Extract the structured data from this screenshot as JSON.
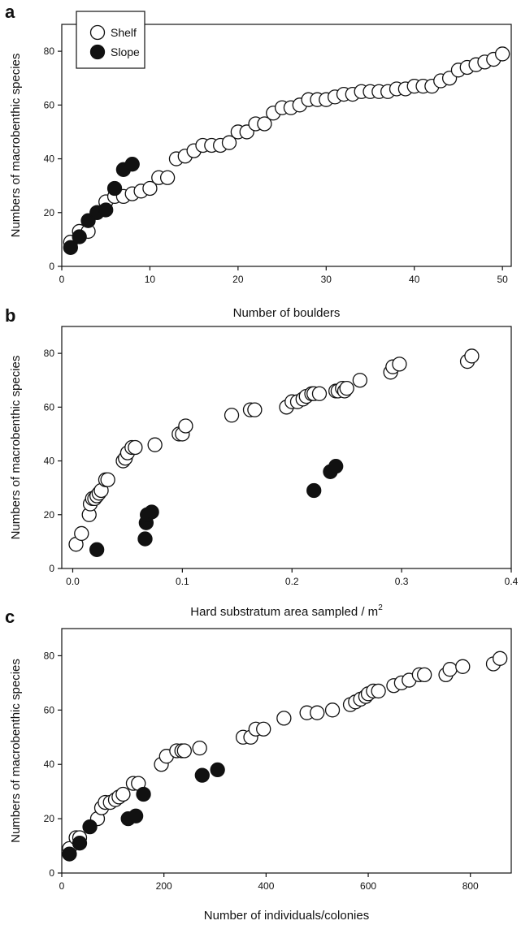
{
  "chart_data": [
    {
      "type": "scatter",
      "panel_letter": "a",
      "xlabel": "Number of boulders",
      "ylabel": "Numbers of macrobenthic species",
      "xlim": [
        0,
        51
      ],
      "ylim": [
        0,
        90
      ],
      "xticks": [
        0,
        10,
        20,
        30,
        40,
        50
      ],
      "xtick_labels": [
        "0",
        "10",
        "20",
        "30",
        "40",
        "50"
      ],
      "yticks": [
        0,
        20,
        40,
        60,
        80
      ],
      "ytick_labels": [
        "0",
        "20",
        "40",
        "60",
        "80"
      ],
      "grid": false,
      "legend": {
        "placement": "top-left",
        "entries": [
          {
            "name": "Shelf",
            "marker": "open-circle"
          },
          {
            "name": "Slope",
            "marker": "filled-circle"
          }
        ]
      },
      "series": [
        {
          "name": "Shelf",
          "marker": "open-circle",
          "points": [
            [
              1,
              9
            ],
            [
              2,
              13
            ],
            [
              3,
              13
            ],
            [
              4,
              20
            ],
            [
              5,
              24
            ],
            [
              6,
              26
            ],
            [
              7,
              26
            ],
            [
              8,
              27
            ],
            [
              9,
              28
            ],
            [
              10,
              29
            ],
            [
              11,
              33
            ],
            [
              12,
              33
            ],
            [
              13,
              40
            ],
            [
              14,
              41
            ],
            [
              15,
              43
            ],
            [
              16,
              45
            ],
            [
              17,
              45
            ],
            [
              18,
              45
            ],
            [
              19,
              46
            ],
            [
              20,
              50
            ],
            [
              21,
              50
            ],
            [
              22,
              53
            ],
            [
              23,
              53
            ],
            [
              24,
              57
            ],
            [
              25,
              59
            ],
            [
              26,
              59
            ],
            [
              27,
              60
            ],
            [
              28,
              62
            ],
            [
              29,
              62
            ],
            [
              30,
              62
            ],
            [
              31,
              63
            ],
            [
              32,
              64
            ],
            [
              33,
              64
            ],
            [
              34,
              65
            ],
            [
              35,
              65
            ],
            [
              36,
              65
            ],
            [
              37,
              65
            ],
            [
              38,
              66
            ],
            [
              39,
              66
            ],
            [
              40,
              67
            ],
            [
              41,
              67
            ],
            [
              42,
              67
            ],
            [
              43,
              69
            ],
            [
              44,
              70
            ],
            [
              45,
              73
            ],
            [
              46,
              74
            ],
            [
              47,
              75
            ],
            [
              48,
              76
            ],
            [
              49,
              77
            ],
            [
              50,
              79
            ]
          ]
        },
        {
          "name": "Slope",
          "marker": "filled-circle",
          "points": [
            [
              1,
              7
            ],
            [
              2,
              11
            ],
            [
              3,
              17
            ],
            [
              4,
              20
            ],
            [
              5,
              21
            ],
            [
              6,
              29
            ],
            [
              7,
              36
            ],
            [
              8,
              38
            ]
          ]
        }
      ]
    },
    {
      "type": "scatter",
      "panel_letter": "b",
      "xlabel": "Hard substratum area sampled / m",
      "xlabel_superscript": "2",
      "ylabel": "Numbers of macrobenthic species",
      "xlim": [
        -0.01,
        0.4
      ],
      "ylim": [
        0,
        90
      ],
      "xticks": [
        0,
        0.1,
        0.2,
        0.3,
        0.4
      ],
      "xtick_labels": [
        "0.0",
        "0.1",
        "0.2",
        "0.3",
        "0.4"
      ],
      "yticks": [
        0,
        20,
        40,
        60,
        80
      ],
      "ytick_labels": [
        "0",
        "20",
        "40",
        "60",
        "80"
      ],
      "grid": false,
      "series": [
        {
          "name": "Shelf",
          "marker": "open-circle",
          "points": [
            [
              0.003,
              9
            ],
            [
              0.008,
              13
            ],
            [
              0.015,
              20
            ],
            [
              0.016,
              24
            ],
            [
              0.018,
              26
            ],
            [
              0.02,
              26
            ],
            [
              0.022,
              27
            ],
            [
              0.024,
              28
            ],
            [
              0.026,
              29
            ],
            [
              0.03,
              33
            ],
            [
              0.032,
              33
            ],
            [
              0.046,
              40
            ],
            [
              0.048,
              41
            ],
            [
              0.05,
              43
            ],
            [
              0.054,
              45
            ],
            [
              0.057,
              45
            ],
            [
              0.075,
              46
            ],
            [
              0.097,
              50
            ],
            [
              0.1,
              50
            ],
            [
              0.103,
              53
            ],
            [
              0.145,
              57
            ],
            [
              0.162,
              59
            ],
            [
              0.166,
              59
            ],
            [
              0.195,
              60
            ],
            [
              0.2,
              62
            ],
            [
              0.205,
              62
            ],
            [
              0.21,
              63
            ],
            [
              0.213,
              64
            ],
            [
              0.218,
              65
            ],
            [
              0.22,
              65
            ],
            [
              0.225,
              65
            ],
            [
              0.24,
              66
            ],
            [
              0.242,
              66
            ],
            [
              0.246,
              67
            ],
            [
              0.248,
              66
            ],
            [
              0.25,
              67
            ],
            [
              0.262,
              70
            ],
            [
              0.29,
              73
            ],
            [
              0.292,
              75
            ],
            [
              0.298,
              76
            ],
            [
              0.36,
              77
            ],
            [
              0.364,
              79
            ]
          ]
        },
        {
          "name": "Slope",
          "marker": "filled-circle",
          "points": [
            [
              0.022,
              7
            ],
            [
              0.066,
              11
            ],
            [
              0.067,
              17
            ],
            [
              0.068,
              20
            ],
            [
              0.072,
              21
            ],
            [
              0.22,
              29
            ],
            [
              0.235,
              36
            ],
            [
              0.24,
              38
            ]
          ]
        }
      ]
    },
    {
      "type": "scatter",
      "panel_letter": "c",
      "xlabel": "Number of individuals/colonies",
      "ylabel": "Numbers of macrobenthic species",
      "xlim": [
        0,
        880
      ],
      "ylim": [
        0,
        90
      ],
      "xticks": [
        0,
        200,
        400,
        600,
        800
      ],
      "xtick_labels": [
        "0",
        "200",
        "400",
        "600",
        "800"
      ],
      "yticks": [
        0,
        20,
        40,
        60,
        80
      ],
      "ytick_labels": [
        "0",
        "20",
        "40",
        "60",
        "80"
      ],
      "grid": false,
      "series": [
        {
          "name": "Shelf",
          "marker": "open-circle",
          "points": [
            [
              15,
              9
            ],
            [
              28,
              13
            ],
            [
              35,
              13
            ],
            [
              70,
              20
            ],
            [
              78,
              24
            ],
            [
              85,
              26
            ],
            [
              95,
              26
            ],
            [
              105,
              27
            ],
            [
              112,
              28
            ],
            [
              120,
              29
            ],
            [
              140,
              33
            ],
            [
              150,
              33
            ],
            [
              195,
              40
            ],
            [
              205,
              43
            ],
            [
              225,
              45
            ],
            [
              235,
              45
            ],
            [
              240,
              45
            ],
            [
              270,
              46
            ],
            [
              355,
              50
            ],
            [
              370,
              50
            ],
            [
              380,
              53
            ],
            [
              395,
              53
            ],
            [
              435,
              57
            ],
            [
              480,
              59
            ],
            [
              500,
              59
            ],
            [
              530,
              60
            ],
            [
              565,
              62
            ],
            [
              575,
              63
            ],
            [
              585,
              64
            ],
            [
              595,
              65
            ],
            [
              600,
              66
            ],
            [
              610,
              67
            ],
            [
              620,
              67
            ],
            [
              650,
              69
            ],
            [
              665,
              70
            ],
            [
              680,
              71
            ],
            [
              700,
              73
            ],
            [
              710,
              73
            ],
            [
              752,
              73
            ],
            [
              760,
              75
            ],
            [
              785,
              76
            ],
            [
              845,
              77
            ],
            [
              858,
              79
            ]
          ]
        },
        {
          "name": "Slope",
          "marker": "filled-circle",
          "points": [
            [
              15,
              7
            ],
            [
              35,
              11
            ],
            [
              55,
              17
            ],
            [
              130,
              20
            ],
            [
              145,
              21
            ],
            [
              160,
              29
            ],
            [
              275,
              36
            ],
            [
              305,
              38
            ]
          ]
        }
      ]
    }
  ]
}
